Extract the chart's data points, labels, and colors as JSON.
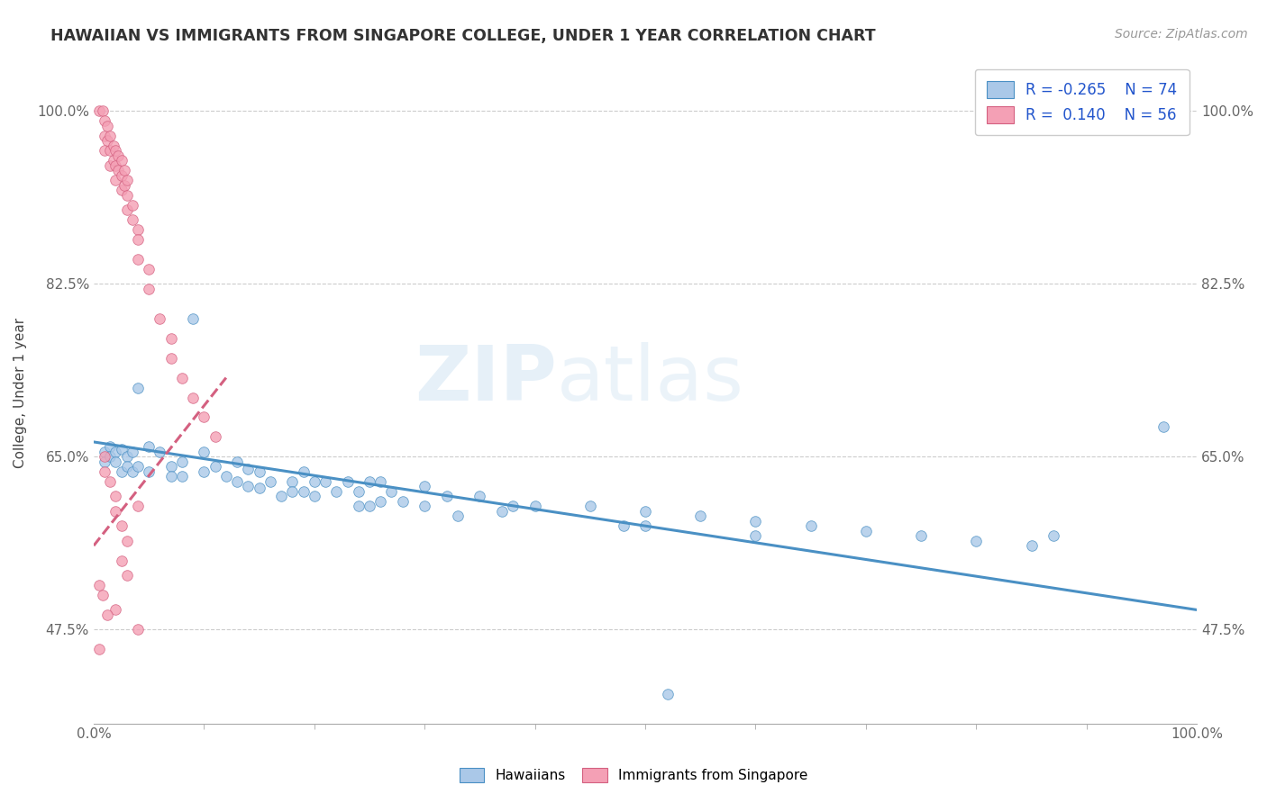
{
  "title": "HAWAIIAN VS IMMIGRANTS FROM SINGAPORE COLLEGE, UNDER 1 YEAR CORRELATION CHART",
  "source": "Source: ZipAtlas.com",
  "ylabel": "College, Under 1 year",
  "xlim": [
    0.0,
    1.0
  ],
  "ylim": [
    0.38,
    1.05
  ],
  "xtick_labels": [
    "0.0%",
    "100.0%"
  ],
  "ytick_labels": [
    "47.5%",
    "65.0%",
    "82.5%",
    "100.0%"
  ],
  "ytick_values": [
    0.475,
    0.65,
    0.825,
    1.0
  ],
  "blue_color": "#aac8e8",
  "pink_color": "#f4a0b5",
  "trendline_blue": "#4a90c4",
  "trendline_pink": "#d46080",
  "blue_scatter": [
    [
      0.01,
      0.655
    ],
    [
      0.01,
      0.645
    ],
    [
      0.015,
      0.66
    ],
    [
      0.015,
      0.65
    ],
    [
      0.02,
      0.655
    ],
    [
      0.02,
      0.645
    ],
    [
      0.025,
      0.658
    ],
    [
      0.025,
      0.635
    ],
    [
      0.03,
      0.65
    ],
    [
      0.03,
      0.64
    ],
    [
      0.035,
      0.655
    ],
    [
      0.035,
      0.635
    ],
    [
      0.04,
      0.72
    ],
    [
      0.04,
      0.64
    ],
    [
      0.05,
      0.66
    ],
    [
      0.05,
      0.635
    ],
    [
      0.06,
      0.655
    ],
    [
      0.07,
      0.64
    ],
    [
      0.07,
      0.63
    ],
    [
      0.08,
      0.645
    ],
    [
      0.08,
      0.63
    ],
    [
      0.09,
      0.79
    ],
    [
      0.1,
      0.655
    ],
    [
      0.1,
      0.635
    ],
    [
      0.11,
      0.64
    ],
    [
      0.12,
      0.63
    ],
    [
      0.13,
      0.645
    ],
    [
      0.13,
      0.625
    ],
    [
      0.14,
      0.638
    ],
    [
      0.14,
      0.62
    ],
    [
      0.15,
      0.635
    ],
    [
      0.15,
      0.618
    ],
    [
      0.16,
      0.625
    ],
    [
      0.17,
      0.61
    ],
    [
      0.18,
      0.625
    ],
    [
      0.18,
      0.615
    ],
    [
      0.19,
      0.635
    ],
    [
      0.19,
      0.615
    ],
    [
      0.2,
      0.625
    ],
    [
      0.2,
      0.61
    ],
    [
      0.21,
      0.625
    ],
    [
      0.22,
      0.615
    ],
    [
      0.23,
      0.625
    ],
    [
      0.24,
      0.615
    ],
    [
      0.24,
      0.6
    ],
    [
      0.25,
      0.625
    ],
    [
      0.25,
      0.6
    ],
    [
      0.26,
      0.625
    ],
    [
      0.26,
      0.605
    ],
    [
      0.27,
      0.615
    ],
    [
      0.28,
      0.605
    ],
    [
      0.3,
      0.62
    ],
    [
      0.3,
      0.6
    ],
    [
      0.32,
      0.61
    ],
    [
      0.33,
      0.59
    ],
    [
      0.35,
      0.61
    ],
    [
      0.37,
      0.595
    ],
    [
      0.38,
      0.6
    ],
    [
      0.4,
      0.6
    ],
    [
      0.45,
      0.6
    ],
    [
      0.48,
      0.58
    ],
    [
      0.5,
      0.595
    ],
    [
      0.5,
      0.58
    ],
    [
      0.55,
      0.59
    ],
    [
      0.6,
      0.585
    ],
    [
      0.6,
      0.57
    ],
    [
      0.65,
      0.58
    ],
    [
      0.7,
      0.575
    ],
    [
      0.75,
      0.57
    ],
    [
      0.8,
      0.565
    ],
    [
      0.85,
      0.56
    ],
    [
      0.87,
      0.57
    ],
    [
      0.97,
      0.68
    ],
    [
      0.52,
      0.41
    ]
  ],
  "pink_scatter": [
    [
      0.005,
      1.0
    ],
    [
      0.008,
      1.0
    ],
    [
      0.01,
      0.99
    ],
    [
      0.01,
      0.975
    ],
    [
      0.01,
      0.96
    ],
    [
      0.012,
      0.985
    ],
    [
      0.012,
      0.97
    ],
    [
      0.015,
      0.975
    ],
    [
      0.015,
      0.96
    ],
    [
      0.015,
      0.945
    ],
    [
      0.018,
      0.965
    ],
    [
      0.018,
      0.95
    ],
    [
      0.02,
      0.96
    ],
    [
      0.02,
      0.945
    ],
    [
      0.02,
      0.93
    ],
    [
      0.022,
      0.955
    ],
    [
      0.022,
      0.94
    ],
    [
      0.025,
      0.95
    ],
    [
      0.025,
      0.935
    ],
    [
      0.025,
      0.92
    ],
    [
      0.028,
      0.94
    ],
    [
      0.028,
      0.925
    ],
    [
      0.03,
      0.93
    ],
    [
      0.03,
      0.915
    ],
    [
      0.03,
      0.9
    ],
    [
      0.035,
      0.905
    ],
    [
      0.035,
      0.89
    ],
    [
      0.04,
      0.88
    ],
    [
      0.04,
      0.87
    ],
    [
      0.04,
      0.85
    ],
    [
      0.05,
      0.84
    ],
    [
      0.05,
      0.82
    ],
    [
      0.06,
      0.79
    ],
    [
      0.07,
      0.77
    ],
    [
      0.07,
      0.75
    ],
    [
      0.08,
      0.73
    ],
    [
      0.09,
      0.71
    ],
    [
      0.1,
      0.69
    ],
    [
      0.11,
      0.67
    ],
    [
      0.01,
      0.65
    ],
    [
      0.01,
      0.635
    ],
    [
      0.015,
      0.625
    ],
    [
      0.02,
      0.61
    ],
    [
      0.02,
      0.595
    ],
    [
      0.025,
      0.58
    ],
    [
      0.03,
      0.565
    ],
    [
      0.04,
      0.6
    ],
    [
      0.005,
      0.52
    ],
    [
      0.02,
      0.495
    ],
    [
      0.04,
      0.475
    ],
    [
      0.005,
      0.455
    ],
    [
      0.025,
      0.545
    ],
    [
      0.03,
      0.53
    ],
    [
      0.008,
      0.51
    ],
    [
      0.012,
      0.49
    ]
  ],
  "blue_trend_x": [
    0.0,
    1.0
  ],
  "blue_trend_y": [
    0.665,
    0.495
  ],
  "pink_trend_x": [
    0.0,
    0.12
  ],
  "pink_trend_y": [
    0.56,
    0.73
  ]
}
